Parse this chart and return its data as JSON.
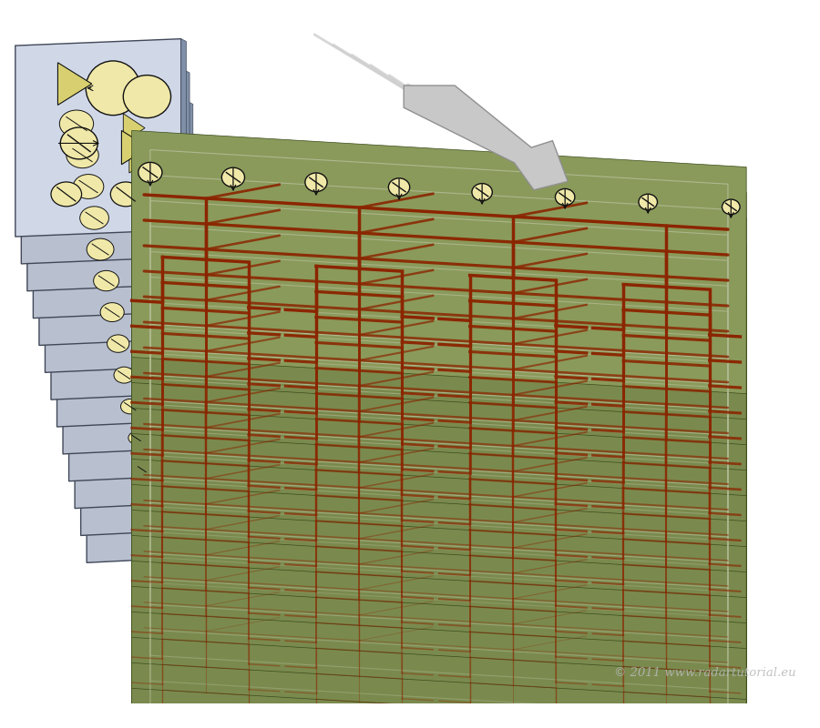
{
  "bg_color": "#ffffff",
  "olive_top": "#8a9a5b",
  "olive_face": "#7a8a4e",
  "olive_side": "#5a6a32",
  "olive_edge": "#3a4a1a",
  "olive_light": "#9aaa6b",
  "gray_panel_fill": "#b8c0d0",
  "gray_panel_light": "#d0d8e8",
  "gray_panel_dark": "#8090a8",
  "gray_panel_edge": "#404858",
  "red_circuit": "#8b2500",
  "cream": "#f0e8a8",
  "cream_dark": "#d8d070",
  "black": "#111111",
  "arrow_gray_fill": "#c8c8c8",
  "arrow_gray_stroke": "#909090",
  "signal_line_color": "#d0d0d0",
  "watermark_color": "#b8b8b8",
  "watermark_text": "© 2011 www.radartutorial.eu"
}
